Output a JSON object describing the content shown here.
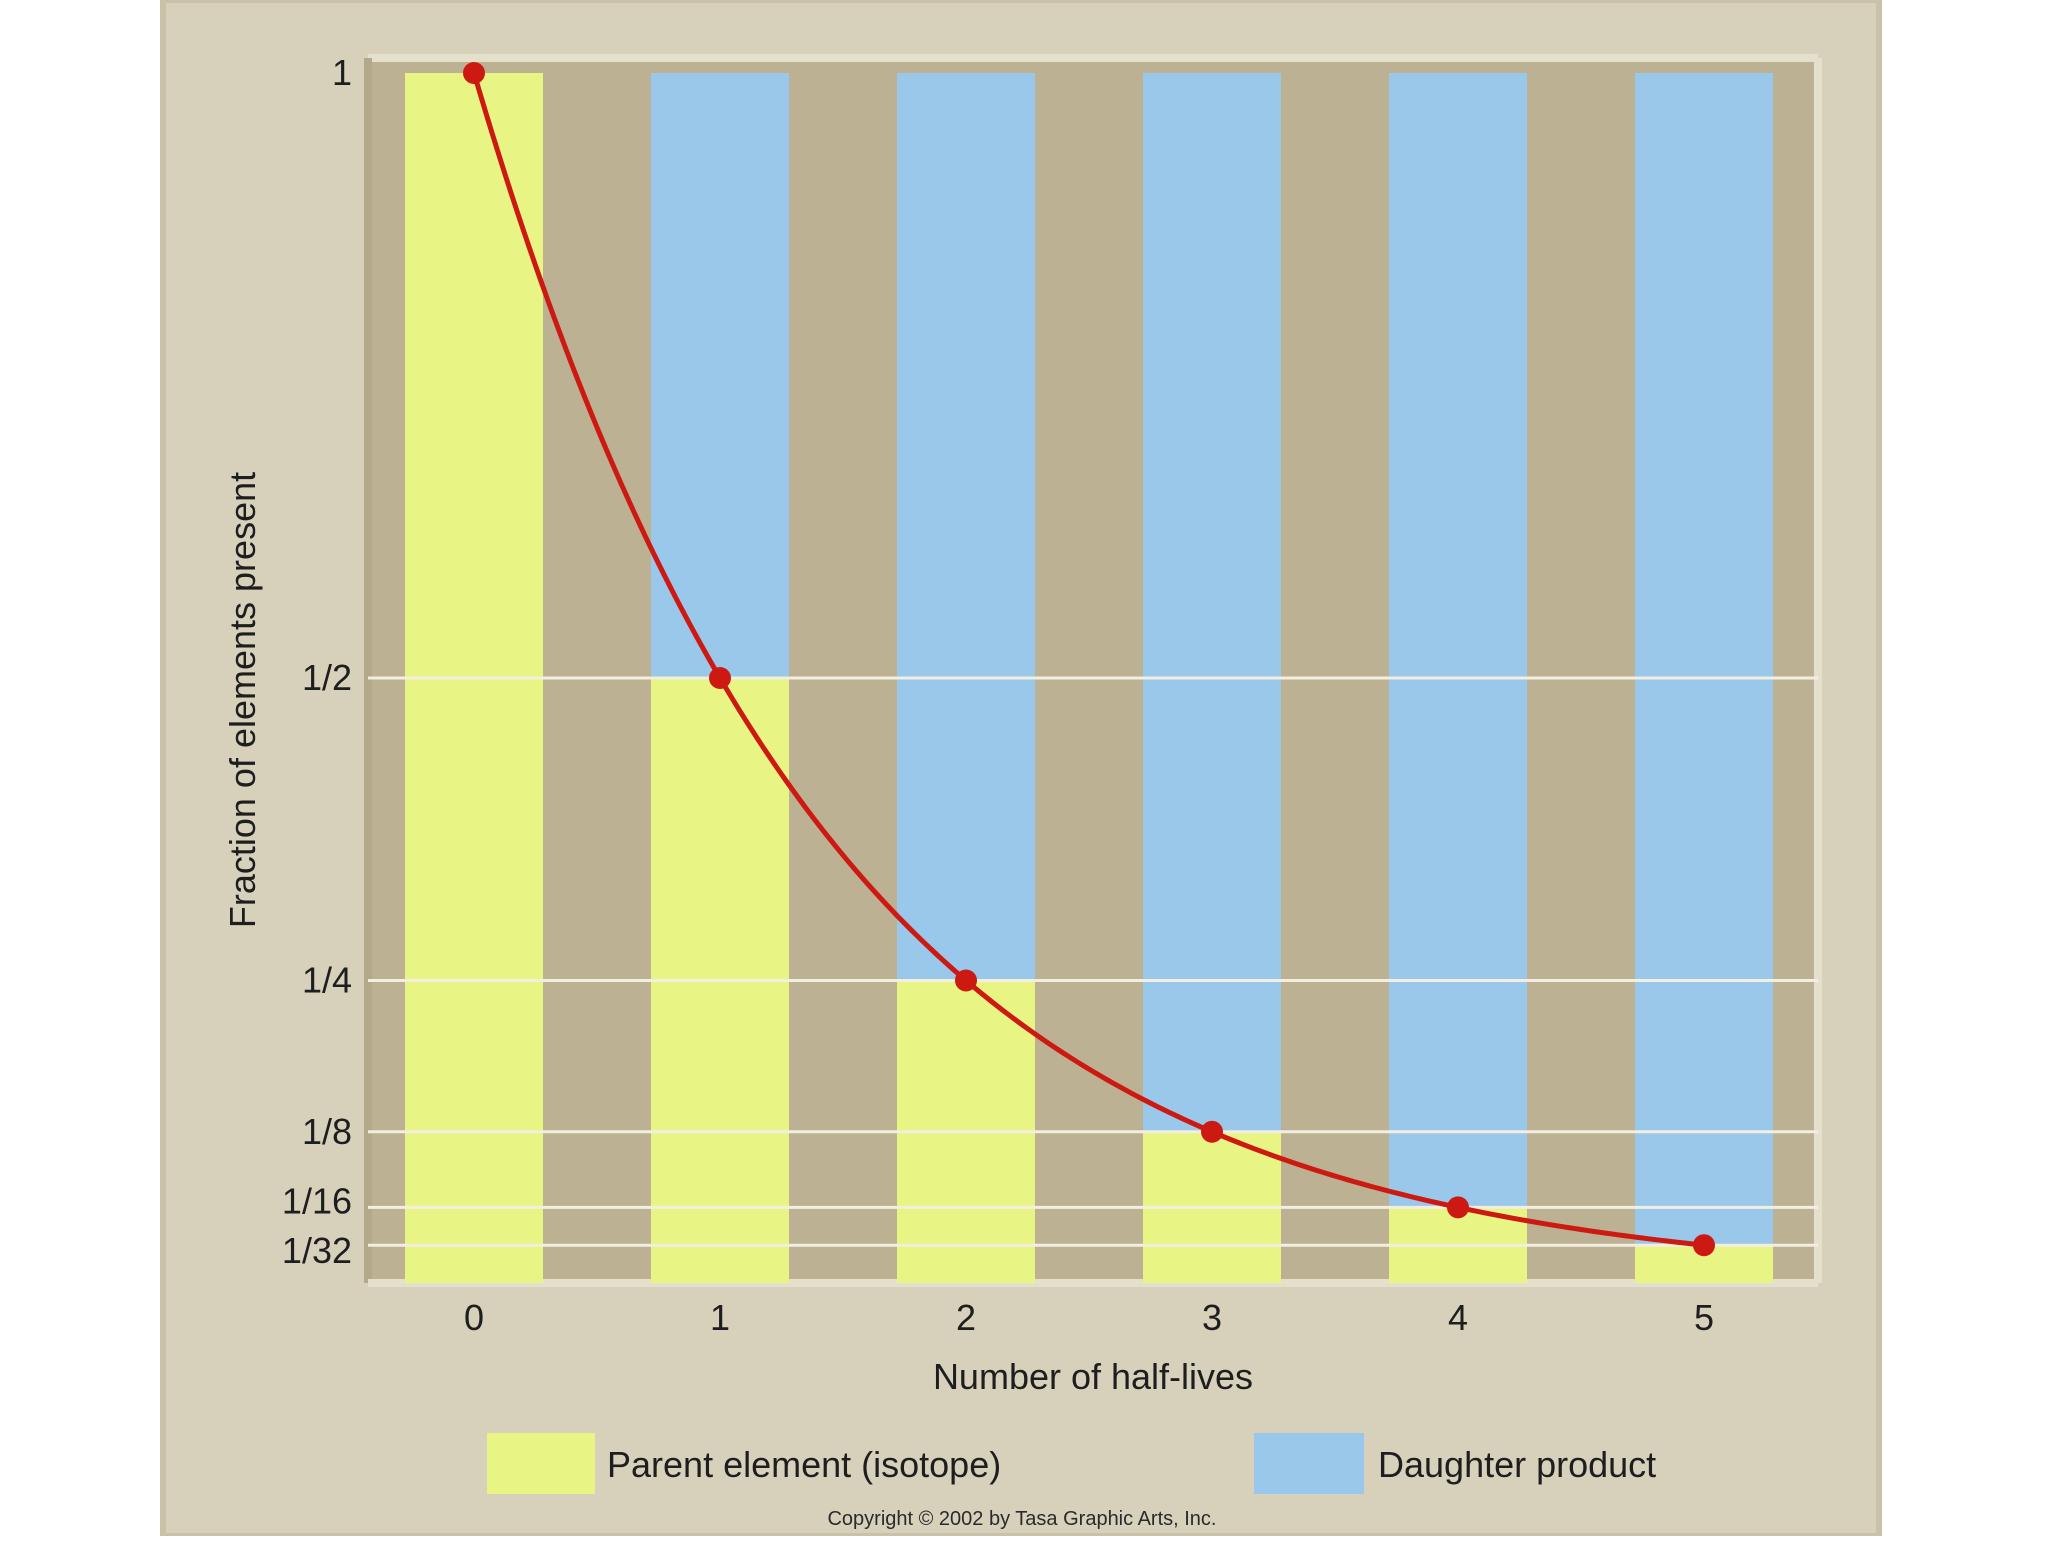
{
  "chart_data": {
    "type": "bar",
    "xlabel": "Number of half-lives",
    "ylabel": "Fraction of elements present",
    "x": [
      0,
      1,
      2,
      3,
      4,
      5
    ],
    "y_ticks": [
      {
        "value": 1,
        "label": "1"
      },
      {
        "value": 0.5,
        "label": "1/2"
      },
      {
        "value": 0.25,
        "label": "1/4"
      },
      {
        "value": 0.125,
        "label": "1/8"
      },
      {
        "value": 0.0625,
        "label": "1/16"
      },
      {
        "value": 0.03125,
        "label": "1/32"
      }
    ],
    "ylim": [
      0,
      1
    ],
    "grid": true,
    "legend_position": "bottom",
    "series": [
      {
        "name": "Parent element (isotope)",
        "color": "#e8f584",
        "values": [
          1,
          0.5,
          0.25,
          0.125,
          0.0625,
          0.03125
        ]
      },
      {
        "name": "Daughter product",
        "color": "#9ac8ea",
        "values": [
          0,
          0.5,
          0.75,
          0.875,
          0.9375,
          0.96875
        ]
      }
    ],
    "curve": {
      "color": "#cc1a12",
      "points": [
        [
          0,
          1
        ],
        [
          1,
          0.5
        ],
        [
          2,
          0.25
        ],
        [
          3,
          0.125
        ],
        [
          4,
          0.0625
        ],
        [
          5,
          0.03125
        ]
      ]
    },
    "colors": {
      "frame": "#d7d1bb",
      "plot_background": "#bdb193",
      "gridline": "#f2eee0",
      "axis": "#e5e0cc",
      "text": "#1e1e1e"
    }
  },
  "copyright": "Copyright © 2002 by Tasa Graphic Arts, Inc."
}
